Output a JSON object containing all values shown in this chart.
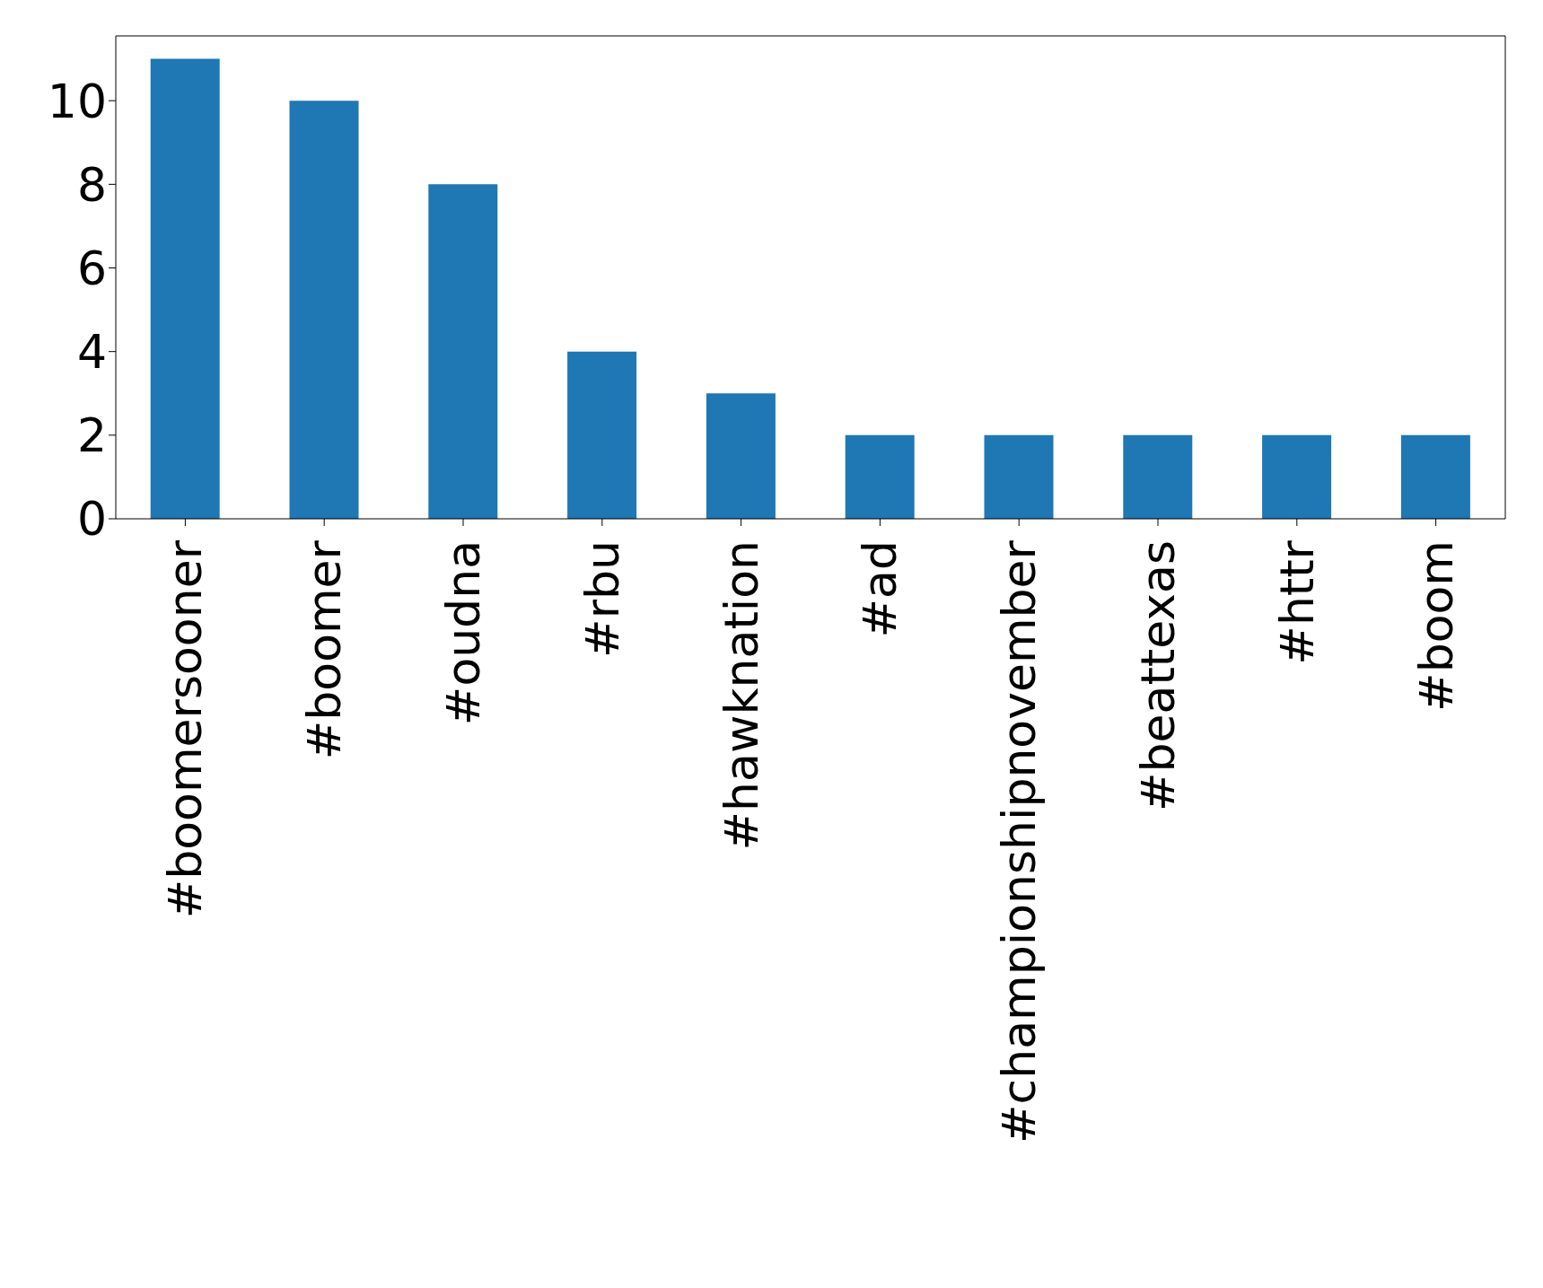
{
  "chart_data": {
    "type": "bar",
    "categories": [
      "#boomersooner",
      "#boomer",
      "#oudna",
      "#rbu",
      "#hawknation",
      "#ad",
      "#championshipnovember",
      "#beattexas",
      "#httr",
      "#boom"
    ],
    "values": [
      11,
      10,
      8,
      4,
      3,
      2,
      2,
      2,
      2,
      2
    ],
    "color": "#1f77b4",
    "ylim": [
      0,
      11.55
    ],
    "yticks": [
      0,
      2,
      4,
      6,
      8,
      10
    ],
    "grid": false
  }
}
